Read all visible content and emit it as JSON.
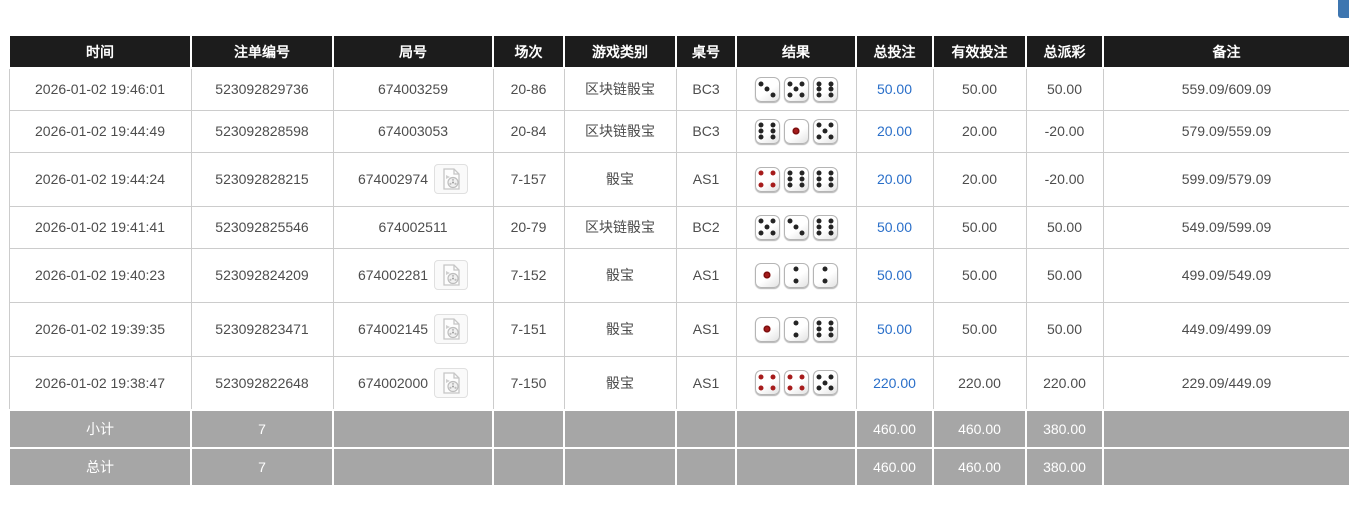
{
  "page": {
    "corner_button_color": "#3e76b0",
    "colors": {
      "header_bg": "#1c1c1c",
      "link_blue": "#2a6fc9",
      "negative_red": "#e60000",
      "summary_bg": "#a6a6a6",
      "dice_red_pip": "#a61b1b"
    }
  },
  "table": {
    "columns": [
      "时间",
      "注单编号",
      "局号",
      "场次",
      "游戏类别",
      "桌号",
      "结果",
      "总投注",
      "有效投注",
      "总派彩",
      "备注"
    ],
    "rows": [
      {
        "time": "2026-01-02 19:46:01",
        "bet_no": "523092829736",
        "round_no": "674003259",
        "has_video": false,
        "session": "20-86",
        "game": "区块链骰宝",
        "table_no": "BC3",
        "dice": [
          3,
          5,
          6
        ],
        "total_bet": "50.00",
        "valid_bet": "50.00",
        "payout": "50.00",
        "remark": "559.09/609.09"
      },
      {
        "time": "2026-01-02 19:44:49",
        "bet_no": "523092828598",
        "round_no": "674003053",
        "has_video": false,
        "session": "20-84",
        "game": "区块链骰宝",
        "table_no": "BC3",
        "dice": [
          6,
          1,
          5
        ],
        "total_bet": "20.00",
        "valid_bet": "20.00",
        "payout": "-20.00",
        "remark": "579.09/559.09"
      },
      {
        "time": "2026-01-02 19:44:24",
        "bet_no": "523092828215",
        "round_no": "674002974",
        "has_video": true,
        "session": "7-157",
        "game": "骰宝",
        "table_no": "AS1",
        "dice": [
          4,
          6,
          6
        ],
        "total_bet": "20.00",
        "valid_bet": "20.00",
        "payout": "-20.00",
        "remark": "599.09/579.09"
      },
      {
        "time": "2026-01-02 19:41:41",
        "bet_no": "523092825546",
        "round_no": "674002511",
        "has_video": false,
        "session": "20-79",
        "game": "区块链骰宝",
        "table_no": "BC2",
        "dice": [
          5,
          3,
          6
        ],
        "total_bet": "50.00",
        "valid_bet": "50.00",
        "payout": "50.00",
        "remark": "549.09/599.09"
      },
      {
        "time": "2026-01-02 19:40:23",
        "bet_no": "523092824209",
        "round_no": "674002281",
        "has_video": true,
        "session": "7-152",
        "game": "骰宝",
        "table_no": "AS1",
        "dice": [
          1,
          2,
          2
        ],
        "total_bet": "50.00",
        "valid_bet": "50.00",
        "payout": "50.00",
        "remark": "499.09/549.09"
      },
      {
        "time": "2026-01-02 19:39:35",
        "bet_no": "523092823471",
        "round_no": "674002145",
        "has_video": true,
        "session": "7-151",
        "game": "骰宝",
        "table_no": "AS1",
        "dice": [
          1,
          2,
          6
        ],
        "total_bet": "50.00",
        "valid_bet": "50.00",
        "payout": "50.00",
        "remark": "449.09/499.09"
      },
      {
        "time": "2026-01-02 19:38:47",
        "bet_no": "523092822648",
        "round_no": "674002000",
        "has_video": true,
        "session": "7-150",
        "game": "骰宝",
        "table_no": "AS1",
        "dice": [
          4,
          4,
          5
        ],
        "total_bet": "220.00",
        "valid_bet": "220.00",
        "payout": "220.00",
        "remark": "229.09/449.09"
      }
    ],
    "summary": [
      {
        "label": "小计",
        "count": "7",
        "total_bet": "460.00",
        "valid_bet": "460.00",
        "payout": "380.00"
      },
      {
        "label": "总计",
        "count": "7",
        "total_bet": "460.00",
        "valid_bet": "460.00",
        "payout": "380.00"
      }
    ]
  }
}
